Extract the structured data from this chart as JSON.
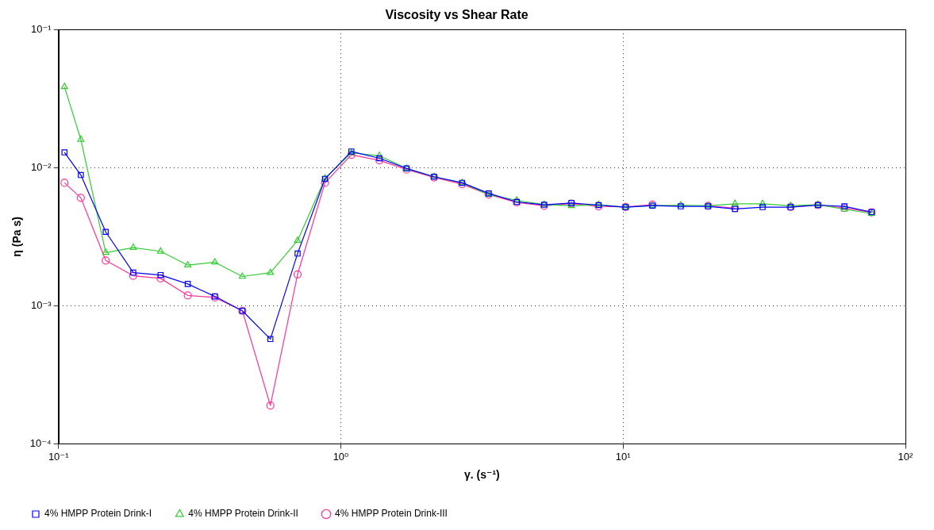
{
  "chart_data": {
    "type": "line",
    "title": "Viscosity vs Shear Rate",
    "xlabel": "γ. (s⁻¹)",
    "ylabel": "η (Pa s)",
    "log": "xy",
    "grid": true,
    "legend": "bottom",
    "xlim": [
      0.1,
      100
    ],
    "ylim": [
      0.0001,
      0.1
    ],
    "xticks": [
      {
        "value": 0.1,
        "label": "10⁻¹"
      },
      {
        "value": 1,
        "label": "10⁰"
      },
      {
        "value": 10,
        "label": "10¹"
      },
      {
        "value": 100,
        "label": "10²"
      }
    ],
    "yticks": [
      {
        "value": 0.0001,
        "label": "10⁻⁴"
      },
      {
        "value": 0.001,
        "label": "10⁻³"
      },
      {
        "value": 0.01,
        "label": "10⁻²"
      },
      {
        "value": 0.1,
        "label": "10⁻¹"
      }
    ],
    "x": [
      0.105,
      0.12,
      0.147,
      0.184,
      0.23,
      0.287,
      0.358,
      0.448,
      0.563,
      0.703,
      0.879,
      1.09,
      1.37,
      1.71,
      2.14,
      2.69,
      3.34,
      4.2,
      5.25,
      6.56,
      8.19,
      10.2,
      12.7,
      16,
      20,
      24.9,
      31.2,
      39.2,
      49,
      60.8,
      75.9
    ],
    "series": [
      {
        "name": "4% HMPP Protein Drink-I",
        "color": "#0000ff",
        "marker": "square",
        "values": [
          0.0129,
          0.00885,
          0.00343,
          0.00174,
          0.00167,
          0.00144,
          0.00117,
          0.00092,
          0.000575,
          0.00239,
          0.0083,
          0.0131,
          0.0117,
          0.00987,
          0.0086,
          0.00777,
          0.00652,
          0.00565,
          0.00539,
          0.00555,
          0.00536,
          0.00518,
          0.00531,
          0.00525,
          0.00525,
          0.00502,
          0.00518,
          0.00518,
          0.00536,
          0.00525,
          0.00477
        ]
      },
      {
        "name": "4% HMPP Protein Drink-II",
        "color": "#33cc33",
        "marker": "triangle",
        "values": [
          0.0385,
          0.016,
          0.00243,
          0.00264,
          0.00248,
          0.00197,
          0.00207,
          0.00163,
          0.00174,
          0.00297,
          0.00836,
          0.0128,
          0.0122,
          0.00987,
          0.0086,
          0.00777,
          0.0064,
          0.0058,
          0.0054,
          0.0053,
          0.0054,
          0.00518,
          0.00531,
          0.00535,
          0.0053,
          0.00548,
          0.00548,
          0.0053,
          0.0054,
          0.005,
          0.00465
        ]
      },
      {
        "name": "4% HMPP Protein Drink-III",
        "color": "#ff3399",
        "marker": "circle",
        "values": [
          0.00777,
          0.00605,
          0.00213,
          0.00165,
          0.00158,
          0.00119,
          0.00115,
          0.00092,
          0.00019,
          0.00169,
          0.00777,
          0.0124,
          0.0113,
          0.0097,
          0.0085,
          0.0076,
          0.0064,
          0.0056,
          0.0053,
          0.0055,
          0.00525,
          0.0052,
          0.0054,
          null,
          0.0053,
          0.0051,
          null,
          0.0052,
          0.00536,
          0.0051,
          0.00475
        ]
      }
    ]
  }
}
